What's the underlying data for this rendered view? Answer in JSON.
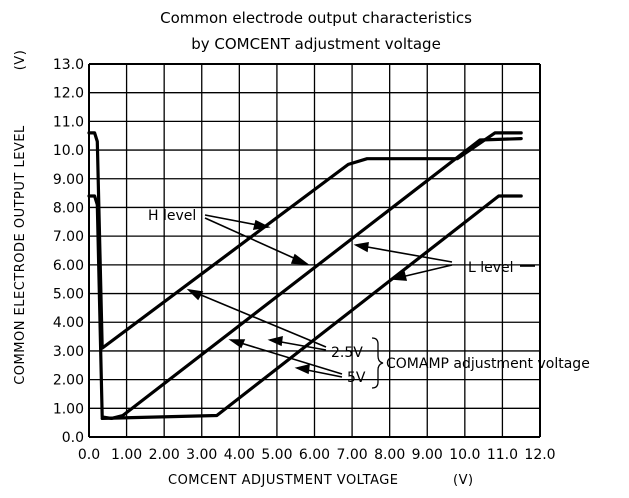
{
  "chart_data": {
    "type": "line",
    "title": [
      "Common electrode output characteristics",
      "by COMCENT adjustment voltage"
    ],
    "xlabel": "COMCENT ADJUSTMENT VOLTAGE",
    "xunit": "(V)",
    "ylabel": "COMMON ELECTRODE OUTPUT LEVEL",
    "yunit": "(V)",
    "xlim": [
      0,
      12
    ],
    "ylim": [
      0,
      13
    ],
    "grid": true,
    "x_ticks": [
      "0.0",
      "1.00",
      "2.00",
      "3.00",
      "4.00",
      "5.00",
      "6.00",
      "7.00",
      "8.00",
      "9.00",
      "10.0",
      "11.0",
      "12.0"
    ],
    "y_ticks": [
      "0.0",
      "1.00",
      "2.00",
      "3.00",
      "4.00",
      "5.00",
      "6.00",
      "7.00",
      "8.00",
      "9.00",
      "10.0",
      "11.0",
      "12.0",
      "13.0"
    ],
    "series": [
      {
        "points": [
          [
            0.0,
            10.6
          ],
          [
            0.15,
            10.6
          ],
          [
            0.22,
            10.3
          ],
          [
            0.35,
            3.1
          ],
          [
            6.9,
            9.5
          ],
          [
            7.4,
            9.7
          ],
          [
            9.8,
            9.7
          ],
          [
            10.8,
            10.6
          ],
          [
            11.5,
            10.6
          ]
        ]
      },
      {
        "points": [
          [
            0.0,
            8.4
          ],
          [
            0.15,
            8.4
          ],
          [
            0.22,
            8.1
          ],
          [
            0.35,
            0.7
          ],
          [
            0.6,
            0.65
          ],
          [
            0.9,
            0.75
          ],
          [
            10.4,
            10.35
          ],
          [
            11.5,
            10.4
          ]
        ]
      },
      {
        "points": [
          [
            0.35,
            0.65
          ],
          [
            3.4,
            0.75
          ],
          [
            10.9,
            8.4
          ],
          [
            11.5,
            8.4
          ]
        ]
      }
    ],
    "annotations": {
      "h_level": "H level",
      "l_level": "L level",
      "v25": "2.5V",
      "v5": "5V",
      "comamp": "COMAMP adjustment voltage"
    }
  }
}
